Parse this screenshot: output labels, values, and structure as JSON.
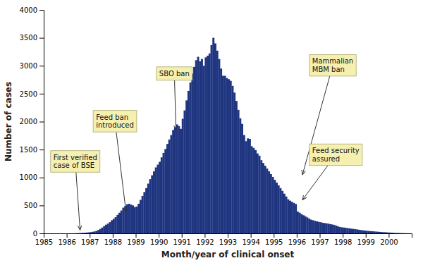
{
  "chart_data": {
    "type": "bar",
    "xlabel": "Month/year of clinical onset",
    "ylabel": "Number of cases",
    "color": "#1f3580",
    "xlim": [
      1985.0,
      2001.0
    ],
    "xticks": [
      1985,
      1986,
      1987,
      1988,
      1989,
      1990,
      1991,
      1992,
      1993,
      1994,
      1995,
      1996,
      1997,
      1998,
      1999,
      2000
    ],
    "ylim": [
      0,
      4000
    ],
    "yticks": [
      0,
      500,
      1000,
      1500,
      2000,
      2500,
      3000,
      3500,
      4000
    ],
    "grid": false,
    "values": [
      0,
      0,
      0,
      0,
      0,
      0,
      0,
      0,
      0,
      0,
      0,
      0,
      0,
      0,
      1,
      1,
      2,
      3,
      5,
      8,
      10,
      12,
      15,
      18,
      22,
      28,
      35,
      45,
      60,
      80,
      105,
      130,
      155,
      175,
      200,
      235,
      260,
      290,
      330,
      370,
      410,
      460,
      490,
      520,
      530,
      515,
      500,
      470,
      480,
      530,
      600,
      670,
      740,
      810,
      890,
      970,
      1040,
      1110,
      1180,
      1230,
      1280,
      1360,
      1440,
      1510,
      1600,
      1680,
      1760,
      1850,
      1900,
      1950,
      1920,
      1870,
      2050,
      2200,
      2380,
      2550,
      2700,
      2860,
      2980,
      3100,
      3160,
      3080,
      3120,
      3000,
      3150,
      3180,
      3220,
      3370,
      3500,
      3400,
      3270,
      3120,
      2950,
      2820,
      2820,
      2780,
      2760,
      2730,
      2640,
      2520,
      2370,
      2210,
      2060,
      1960,
      1760,
      1650,
      1700,
      1690,
      1560,
      1530,
      1490,
      1430,
      1390,
      1310,
      1260,
      1210,
      1160,
      1110,
      1060,
      1010,
      960,
      910,
      860,
      810,
      760,
      710,
      660,
      610,
      585,
      565,
      545,
      525,
      390,
      370,
      345,
      325,
      305,
      285,
      265,
      245,
      235,
      225,
      215,
      205,
      200,
      190,
      185,
      180,
      175,
      165,
      160,
      150,
      140,
      125,
      115,
      108,
      105,
      100,
      95,
      90,
      85,
      80,
      75,
      70,
      65,
      60,
      55,
      50,
      48,
      44,
      41,
      38,
      35,
      32,
      29,
      26,
      23,
      21,
      19,
      17,
      15,
      13,
      11,
      9,
      8,
      7,
      5,
      4,
      3,
      2,
      2,
      1
    ],
    "annotations": [
      {
        "text": "First verified\ncase of BSE",
        "x": 1986.58,
        "y": 60,
        "text_x": 1985.3,
        "text_y": 1480
      },
      {
        "text": "Feed ban\nintroduced",
        "x": 1988.58,
        "y": 380,
        "text_x": 1987.15,
        "text_y": 2200
      },
      {
        "text": "SBO ban",
        "x": 1990.75,
        "y": 1850,
        "text_x": 1989.9,
        "text_y": 2980
      },
      {
        "text": "Mammalian\nMBM ban",
        "x": 1996.25,
        "y": 1050,
        "text_x": 1996.55,
        "text_y": 3200
      },
      {
        "text": "Feed security\nassured",
        "x": 1996.25,
        "y": 600,
        "text_x": 1996.55,
        "text_y": 1600
      }
    ]
  }
}
